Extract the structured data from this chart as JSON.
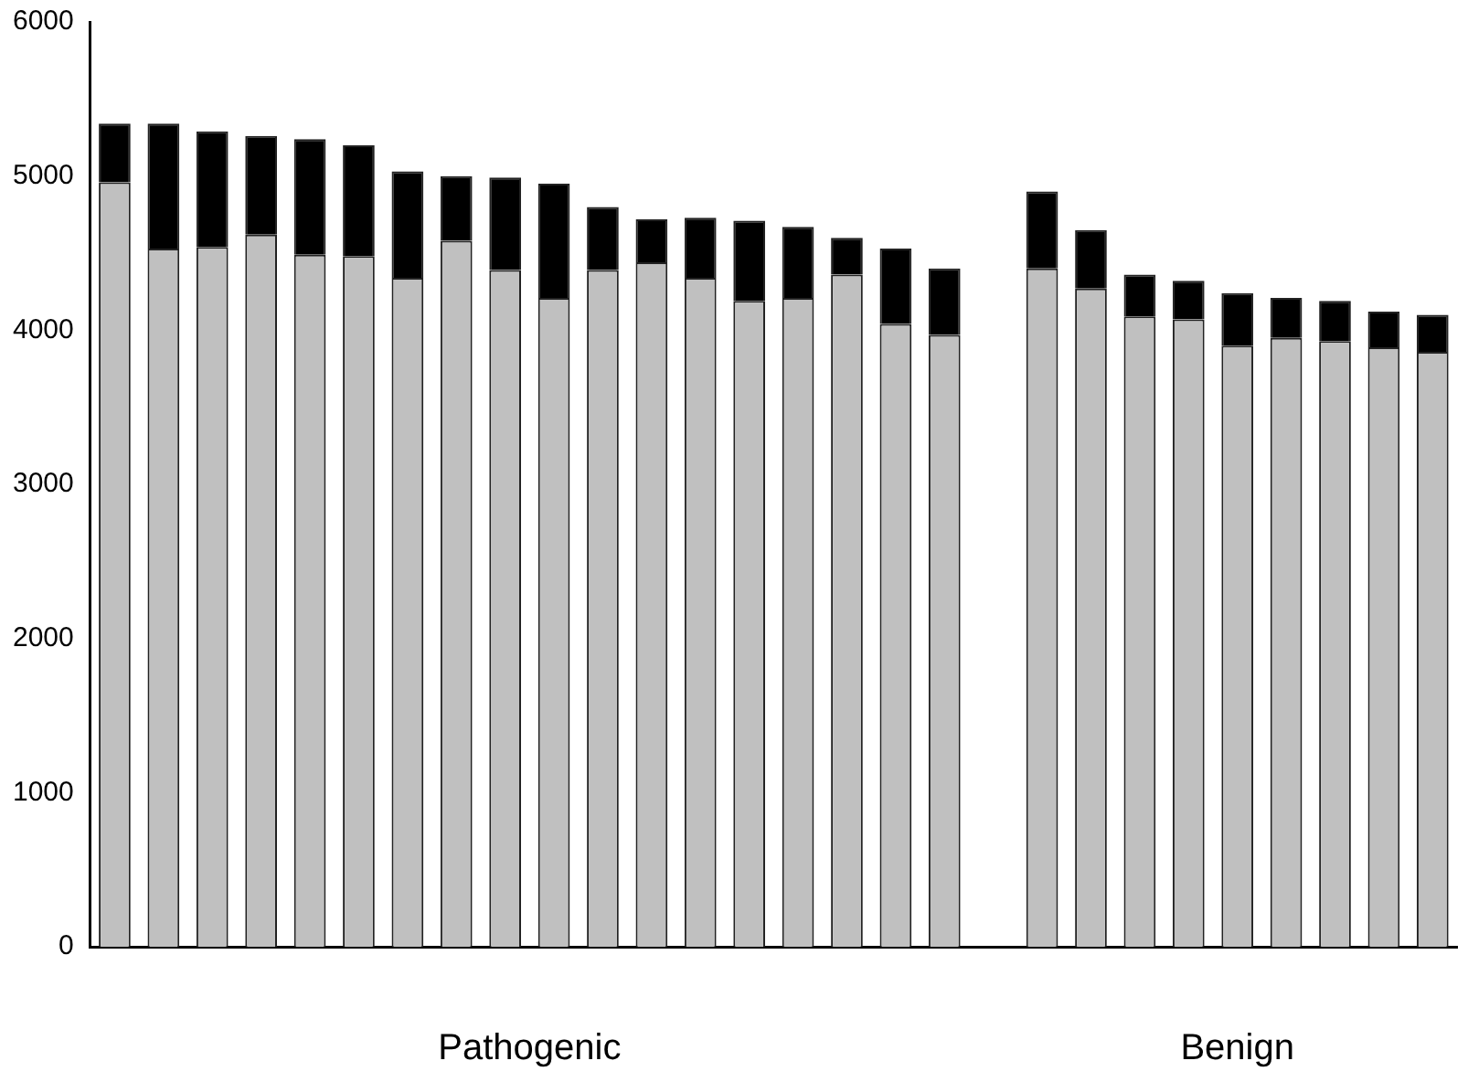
{
  "chart_data": {
    "type": "bar",
    "stacked": true,
    "categories": [
      null,
      null,
      null,
      null,
      null,
      null,
      null,
      null,
      null,
      null,
      null,
      null,
      null,
      null,
      null,
      null,
      null,
      null,
      null,
      null,
      null,
      null,
      null,
      null,
      null,
      null,
      null,
      null
    ],
    "series": [
      {
        "color": "#c0c0c0",
        "values": [
          4960,
          4530,
          4540,
          4620,
          4490,
          4480,
          4340,
          4580,
          4390,
          4210,
          4390,
          4440,
          4340,
          4190,
          4210,
          4360,
          4040,
          3970,
          null,
          4400,
          4270,
          4090,
          4070,
          3900,
          3950,
          3930,
          3890,
          3860
        ]
      },
      {
        "color": "#000000",
        "values": [
          380,
          810,
          750,
          640,
          750,
          720,
          690,
          420,
          600,
          740,
          410,
          280,
          390,
          520,
          460,
          240,
          490,
          430,
          null,
          500,
          380,
          270,
          250,
          340,
          260,
          260,
          230,
          240
        ]
      }
    ],
    "ylim": [
      0,
      6000
    ],
    "yticks": [
      0,
      1000,
      2000,
      3000,
      4000,
      5000,
      6000
    ],
    "grid": false,
    "legend": false,
    "annotations": [
      "Pathogenic",
      "Benign"
    ]
  }
}
